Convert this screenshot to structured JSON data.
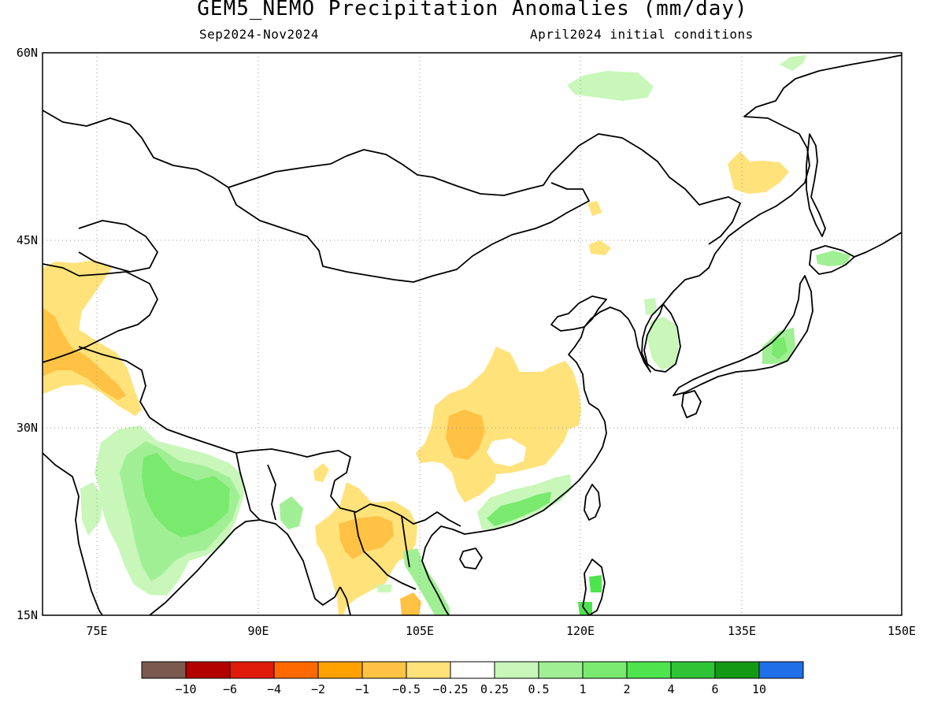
{
  "title": "GEM5_NEMO Precipitation Anomalies (mm/day)",
  "season": "Sep2024-Nov2024",
  "init": "April2024 initial conditions",
  "lat_labels": [
    "60N",
    "45N",
    "30N",
    "15N"
  ],
  "lon_labels": [
    "75E",
    "90E",
    "105E",
    "120E",
    "135E",
    "150E"
  ],
  "colorbar": {
    "colors": [
      "#7a5a4e",
      "#b30000",
      "#e01b0b",
      "#ff6a00",
      "#ffa200",
      "#ffc244",
      "#ffe27a",
      "#ffffff",
      "#c8f7b9",
      "#a1ef95",
      "#79ea6e",
      "#4ee44d",
      "#2fc435",
      "#139913",
      "#1f6fe8"
    ],
    "labels": [
      "-10",
      "-6",
      "-4",
      "-2",
      "-1",
      "-0.5",
      "-0.25",
      "0.25",
      "0.5",
      "1",
      "2",
      "4",
      "6",
      "10"
    ]
  }
}
